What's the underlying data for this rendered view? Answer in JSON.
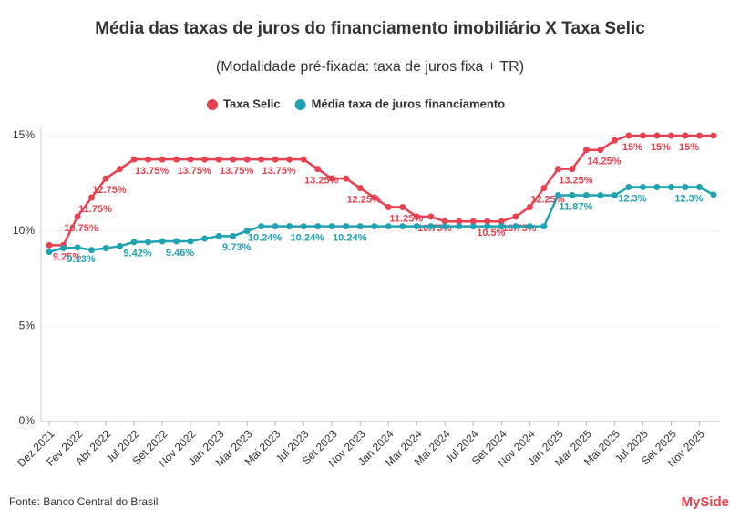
{
  "chart_data": {
    "type": "line",
    "title": "Média das taxas de juros do financiamento imobiliário X Taxa Selic",
    "subtitle": "(Modalidade pré-fixada: taxa de juros fixa + TR)",
    "source": "Fonte: Banco Central do Brasil",
    "brand": "MySide",
    "categories": [
      "Dez 2021",
      null,
      "Fev 2022",
      null,
      "Abr 2022",
      null,
      "Jul 2022",
      null,
      "Set 2022",
      null,
      "Nov 2022",
      null,
      "Jan 2023",
      null,
      "Mar 2023",
      null,
      "Mai 2023",
      null,
      "Jul 2023",
      null,
      "Set 2023",
      null,
      "Nov 2023",
      null,
      "Jan 2024",
      null,
      "Mar 2024",
      null,
      "Mai 2024",
      null,
      "Jul 2024",
      null,
      "Set 2024",
      null,
      "Nov 2024",
      null,
      "Jan 2025",
      null,
      "Mar 2025",
      null,
      "Mai 2025",
      null,
      "Jul 2025",
      null,
      "Set 2025",
      null,
      "Nov 2025",
      null
    ],
    "series": [
      {
        "name": "Taxa Selic",
        "color": "#e8414f",
        "values": [
          9.25,
          9.25,
          10.75,
          11.75,
          12.75,
          13.25,
          13.75,
          13.75,
          13.75,
          13.75,
          13.75,
          13.75,
          13.75,
          13.75,
          13.75,
          13.75,
          13.75,
          13.75,
          13.75,
          13.25,
          12.75,
          12.75,
          12.25,
          11.75,
          11.25,
          11.25,
          10.75,
          10.75,
          10.5,
          10.5,
          10.5,
          10.5,
          10.5,
          10.75,
          11.25,
          12.25,
          13.25,
          13.25,
          14.25,
          14.25,
          14.75,
          15,
          15,
          15,
          15,
          15,
          15,
          15
        ],
        "value_labels": [
          null,
          "9.25%",
          "10.75%",
          "11.75%",
          "12.75%",
          null,
          null,
          "13.75%",
          null,
          null,
          "13.75%",
          null,
          null,
          "13.75%",
          null,
          null,
          "13.75%",
          null,
          null,
          "13.25%",
          null,
          null,
          "12.25%",
          null,
          null,
          "11.25%",
          null,
          "10.75%",
          null,
          null,
          null,
          "10.5%",
          null,
          "10.75%",
          null,
          "12.25%",
          null,
          "13.25%",
          null,
          "14.25%",
          null,
          "15%",
          null,
          "15%",
          null,
          "15%",
          null,
          null
        ]
      },
      {
        "name": "Média taxa de juros financiamento",
        "color": "#1fa3b3",
        "values": [
          8.9,
          9.1,
          9.13,
          9.0,
          9.1,
          9.2,
          9.42,
          9.42,
          9.46,
          9.46,
          9.46,
          9.6,
          9.73,
          9.73,
          10.0,
          10.24,
          10.24,
          10.24,
          10.24,
          10.24,
          10.24,
          10.24,
          10.24,
          10.24,
          10.24,
          10.24,
          10.24,
          10.24,
          10.24,
          10.24,
          10.24,
          10.24,
          10.24,
          10.24,
          10.24,
          10.24,
          11.87,
          11.87,
          11.87,
          11.87,
          11.87,
          12.3,
          12.3,
          12.3,
          12.3,
          12.3,
          12.3,
          11.9
        ],
        "value_labels": [
          null,
          null,
          "9.13%",
          null,
          null,
          null,
          "9.42%",
          null,
          null,
          "9.46%",
          null,
          null,
          null,
          "9.73%",
          null,
          "10.24%",
          null,
          null,
          "10.24%",
          null,
          null,
          "10.24%",
          null,
          null,
          null,
          null,
          null,
          null,
          null,
          null,
          null,
          null,
          null,
          null,
          null,
          null,
          null,
          "11.87%",
          null,
          null,
          null,
          "12.3%",
          null,
          null,
          null,
          "12.3%",
          null,
          null
        ]
      }
    ],
    "ylim": [
      0,
      15
    ],
    "yticks": [
      {
        "value": 0,
        "label": "0%"
      },
      {
        "value": 5,
        "label": "5%"
      },
      {
        "value": 10,
        "label": "10%"
      },
      {
        "value": 15,
        "label": "15%"
      }
    ],
    "grid": true,
    "legend": "top"
  }
}
